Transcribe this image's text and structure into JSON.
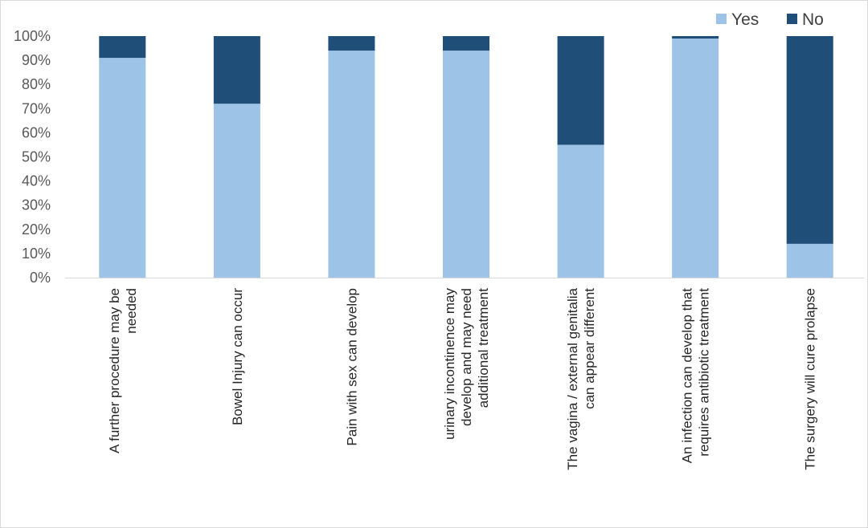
{
  "chart_data": {
    "type": "bar",
    "stacked": "percent",
    "categories": [
      [
        "A further procedure may be",
        "needed"
      ],
      [
        "Bowel Injury can occur"
      ],
      [
        "Pain with sex can develop"
      ],
      [
        "urinary incontinence may",
        "develop and may need",
        "additional treatment"
      ],
      [
        "The vagina / external genitalia",
        "can appear different"
      ],
      [
        "An infection can develop that",
        "requires antibiotic treatment"
      ],
      [
        "The surgery will cure prolapse"
      ]
    ],
    "series": [
      {
        "name": "Yes",
        "color": "#9dc3e6",
        "values": [
          91,
          72,
          94,
          94,
          55,
          99,
          14
        ]
      },
      {
        "name": "No",
        "color": "#1f4e79",
        "values": [
          9,
          28,
          6,
          6,
          45,
          1,
          86
        ]
      }
    ],
    "ylim": [
      0,
      100
    ],
    "yticks": [
      "0%",
      "10%",
      "20%",
      "30%",
      "40%",
      "50%",
      "60%",
      "70%",
      "80%",
      "90%",
      "100%"
    ],
    "grid": false,
    "legend_position": "top-right"
  }
}
